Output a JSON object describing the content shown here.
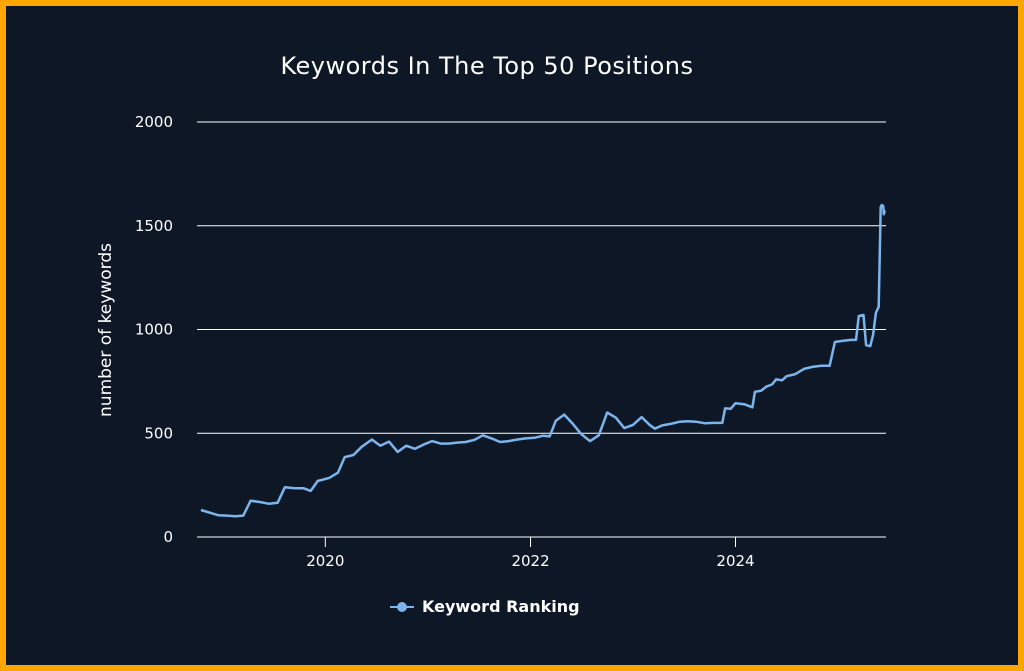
{
  "chart_data": {
    "type": "line",
    "title": "Keywords In The Top 50 Positions",
    "xlabel": "",
    "ylabel": "number of keywords",
    "ylim": [
      0,
      2000
    ],
    "yticks": [
      0,
      500,
      1000,
      1500,
      2000
    ],
    "xlim": [
      "2018-10-01",
      "2025-06-20"
    ],
    "xticks": [
      {
        "label": "2020",
        "date": "2020-01-01"
      },
      {
        "label": "2022",
        "date": "2022-01-01"
      },
      {
        "label": "2024",
        "date": "2024-01-01"
      }
    ],
    "grid": "horizontal",
    "legend_position": "bottom-center",
    "series": [
      {
        "name": "Keyword Ranking",
        "color": "#7cb5ec",
        "points": [
          [
            "2018-10-15",
            130
          ],
          [
            "2018-12-15",
            105
          ],
          [
            "2019-01-15",
            103
          ],
          [
            "2019-02-15",
            100
          ],
          [
            "2019-03-15",
            103
          ],
          [
            "2019-04-10",
            175
          ],
          [
            "2019-05-15",
            168
          ],
          [
            "2019-06-15",
            160
          ],
          [
            "2019-07-15",
            165
          ],
          [
            "2019-08-10",
            240
          ],
          [
            "2019-09-15",
            235
          ],
          [
            "2019-10-15",
            235
          ],
          [
            "2019-11-10",
            222
          ],
          [
            "2019-12-05",
            270
          ],
          [
            "2020-01-15",
            285
          ],
          [
            "2020-02-15",
            310
          ],
          [
            "2020-03-10",
            385
          ],
          [
            "2020-04-10",
            395
          ],
          [
            "2020-05-10",
            435
          ],
          [
            "2020-06-15",
            470
          ],
          [
            "2020-07-15",
            440
          ],
          [
            "2020-08-15",
            460
          ],
          [
            "2020-09-15",
            410
          ],
          [
            "2020-10-15",
            440
          ],
          [
            "2020-11-15",
            425
          ],
          [
            "2020-12-15",
            445
          ],
          [
            "2021-01-15",
            462
          ],
          [
            "2021-02-15",
            450
          ],
          [
            "2021-03-15",
            450
          ],
          [
            "2021-04-15",
            455
          ],
          [
            "2021-05-15",
            458
          ],
          [
            "2021-06-15",
            468
          ],
          [
            "2021-07-15",
            490
          ],
          [
            "2021-08-15",
            475
          ],
          [
            "2021-09-15",
            458
          ],
          [
            "2021-10-15",
            462
          ],
          [
            "2021-11-15",
            470
          ],
          [
            "2021-12-15",
            475
          ],
          [
            "2022-01-15",
            478
          ],
          [
            "2022-02-15",
            488
          ],
          [
            "2022-03-10",
            485
          ],
          [
            "2022-04-01",
            560
          ],
          [
            "2022-05-01",
            590
          ],
          [
            "2022-06-01",
            545
          ],
          [
            "2022-07-01",
            495
          ],
          [
            "2022-08-01",
            462
          ],
          [
            "2022-09-01",
            490
          ],
          [
            "2022-10-01",
            600
          ],
          [
            "2022-11-01",
            575
          ],
          [
            "2022-12-01",
            525
          ],
          [
            "2023-01-01",
            540
          ],
          [
            "2023-02-01",
            578
          ],
          [
            "2023-03-01",
            540
          ],
          [
            "2023-03-20",
            522
          ],
          [
            "2023-04-15",
            538
          ],
          [
            "2023-05-15",
            545
          ],
          [
            "2023-06-15",
            555
          ],
          [
            "2023-07-15",
            558
          ],
          [
            "2023-08-15",
            555
          ],
          [
            "2023-09-15",
            548
          ],
          [
            "2023-10-15",
            550
          ],
          [
            "2023-11-15",
            550
          ],
          [
            "2023-11-25",
            620
          ],
          [
            "2023-12-15",
            618
          ],
          [
            "2024-01-01",
            645
          ],
          [
            "2024-02-01",
            640
          ],
          [
            "2024-03-01",
            625
          ],
          [
            "2024-03-10",
            700
          ],
          [
            "2024-04-01",
            705
          ],
          [
            "2024-04-20",
            725
          ],
          [
            "2024-05-10",
            735
          ],
          [
            "2024-05-25",
            760
          ],
          [
            "2024-06-15",
            755
          ],
          [
            "2024-07-01",
            775
          ],
          [
            "2024-08-01",
            785
          ],
          [
            "2024-09-01",
            810
          ],
          [
            "2024-10-01",
            820
          ],
          [
            "2024-11-01",
            825
          ],
          [
            "2024-12-01",
            825
          ],
          [
            "2024-12-20",
            940
          ],
          [
            "2025-01-15",
            945
          ],
          [
            "2025-02-15",
            950
          ],
          [
            "2025-03-05",
            950
          ],
          [
            "2025-03-15",
            1065
          ],
          [
            "2025-04-01",
            1070
          ],
          [
            "2025-04-10",
            925
          ],
          [
            "2025-04-25",
            920
          ],
          [
            "2025-05-05",
            975
          ],
          [
            "2025-05-15",
            1080
          ],
          [
            "2025-05-25",
            1110
          ],
          [
            "2025-06-01",
            1590
          ],
          [
            "2025-06-05",
            1600
          ],
          [
            "2025-06-10",
            1595
          ],
          [
            "2025-06-12",
            1555
          ],
          [
            "2025-06-15",
            1570
          ],
          [
            "2025-06-18",
            1572
          ]
        ]
      }
    ]
  }
}
